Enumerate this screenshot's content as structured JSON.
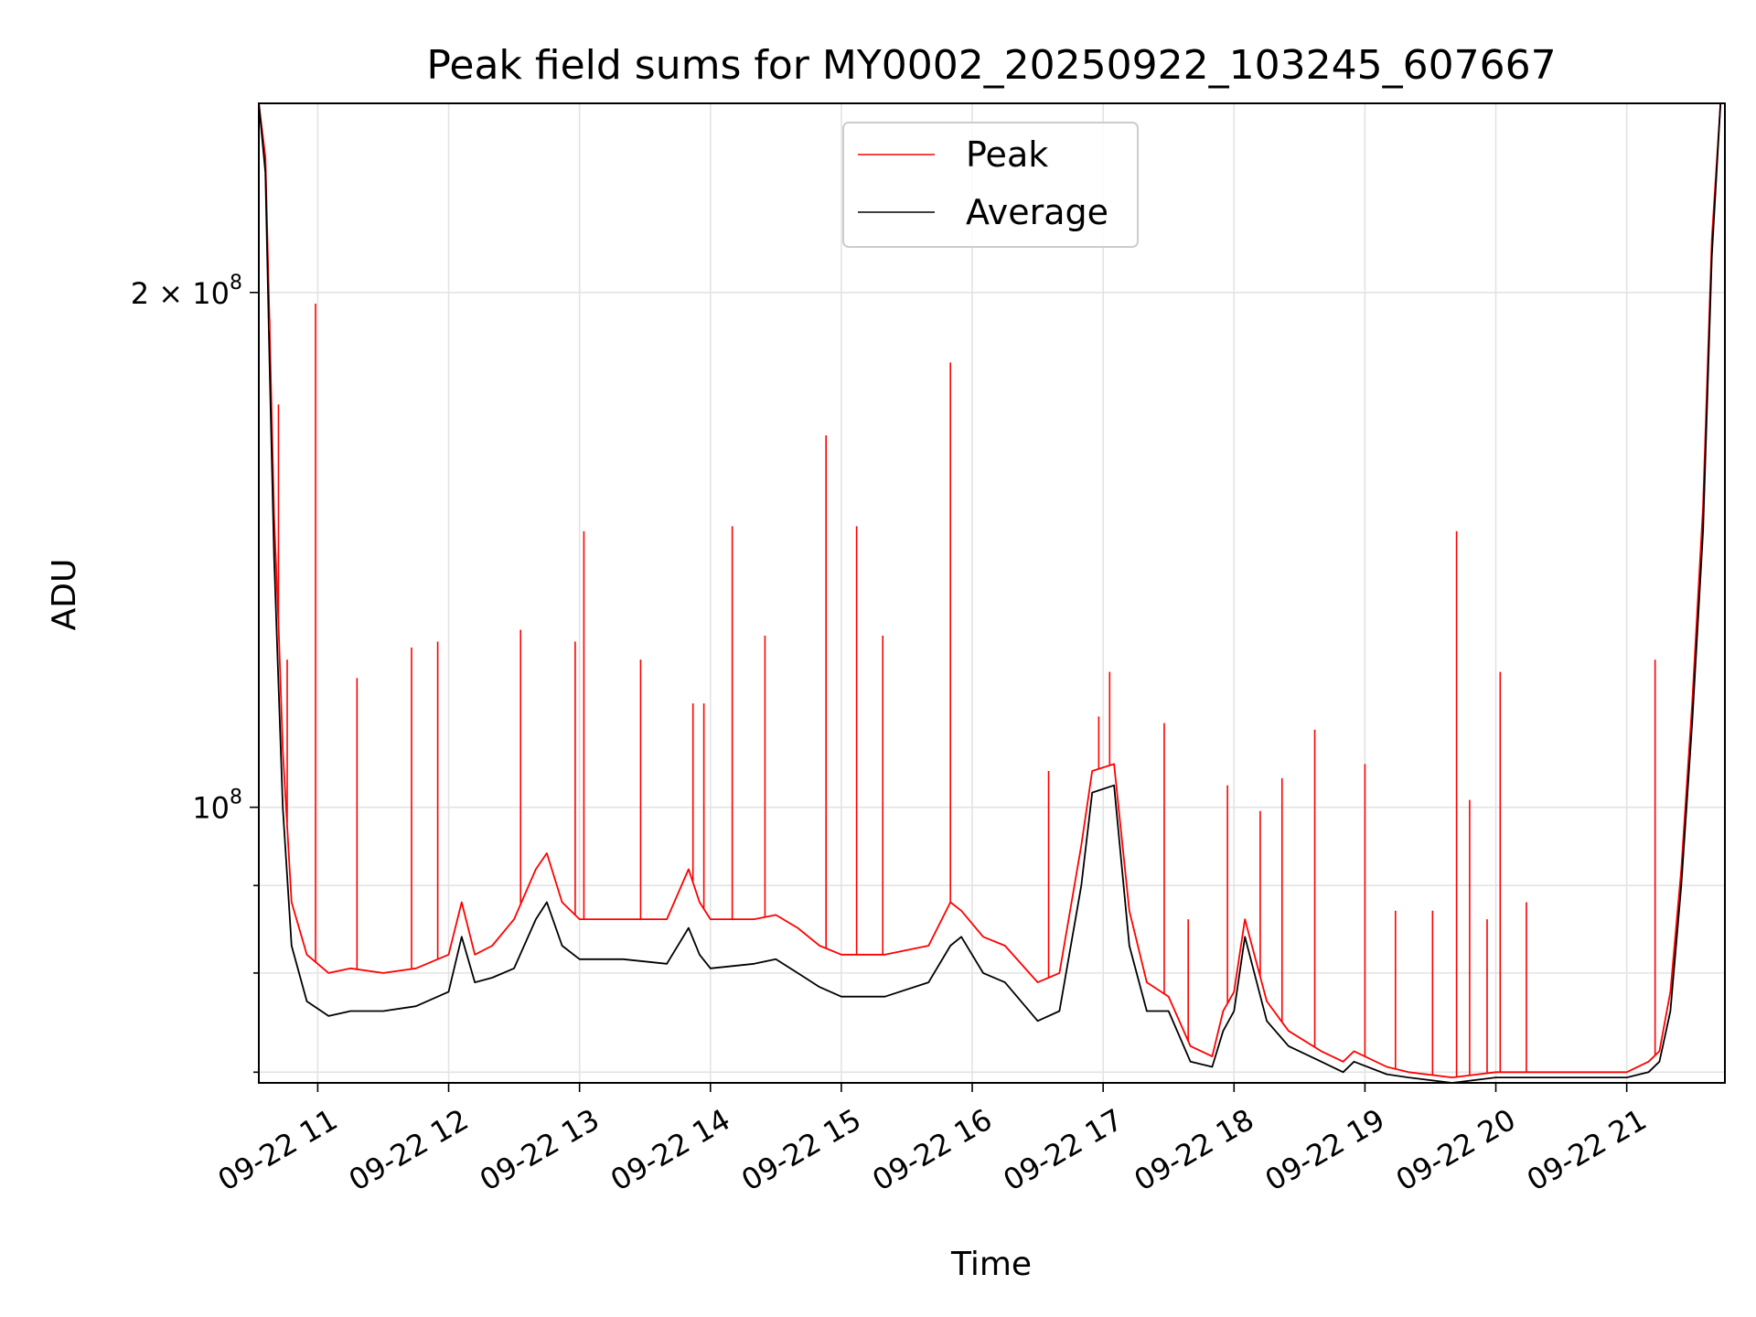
{
  "chart_data": {
    "type": "line",
    "title": "Peak field sums for MY0002_20250922_103245_607667",
    "xlabel": "Time",
    "ylabel": "ADU",
    "y_scale": "log",
    "grid": true,
    "legend_position": "upper center",
    "xlim": [
      "2025-09-22 10:33",
      "2025-09-22 21:45"
    ],
    "ylim": [
      69000000,
      258000000
    ],
    "x_ticks": [
      {
        "value": "2025-09-22 11:00",
        "label": "09-22 11"
      },
      {
        "value": "2025-09-22 12:00",
        "label": "09-22 12"
      },
      {
        "value": "2025-09-22 13:00",
        "label": "09-22 13"
      },
      {
        "value": "2025-09-22 14:00",
        "label": "09-22 14"
      },
      {
        "value": "2025-09-22 15:00",
        "label": "09-22 15"
      },
      {
        "value": "2025-09-22 16:00",
        "label": "09-22 16"
      },
      {
        "value": "2025-09-22 17:00",
        "label": "09-22 17"
      },
      {
        "value": "2025-09-22 18:00",
        "label": "09-22 18"
      },
      {
        "value": "2025-09-22 19:00",
        "label": "09-22 19"
      },
      {
        "value": "2025-09-22 20:00",
        "label": "09-22 20"
      },
      {
        "value": "2025-09-22 21:00",
        "label": "09-22 21"
      }
    ],
    "y_major_ticks": [
      {
        "value": 100000000,
        "label_base": "10",
        "label_exp": "8",
        "label_prefix": ""
      },
      {
        "value": 200000000,
        "label_base": "10",
        "label_exp": "8",
        "label_prefix": "2 × "
      }
    ],
    "y_minor_ticks": [
      70000000,
      80000000,
      90000000
    ],
    "series": [
      {
        "name": "Peak",
        "color": "#ff0000",
        "x": [
          "2025-09-22 10:33",
          "2025-09-22 10:36",
          "2025-09-22 10:38",
          "2025-09-22 10:40",
          "2025-09-22 10:42",
          "2025-09-22 10:44",
          "2025-09-22 10:48",
          "2025-09-22 10:55",
          "2025-09-22 11:05",
          "2025-09-22 11:15",
          "2025-09-22 11:30",
          "2025-09-22 11:45",
          "2025-09-22 12:00",
          "2025-09-22 12:06",
          "2025-09-22 12:12",
          "2025-09-22 12:20",
          "2025-09-22 12:30",
          "2025-09-22 12:40",
          "2025-09-22 12:45",
          "2025-09-22 12:52",
          "2025-09-22 13:00",
          "2025-09-22 13:20",
          "2025-09-22 13:40",
          "2025-09-22 13:50",
          "2025-09-22 13:55",
          "2025-09-22 14:00",
          "2025-09-22 14:20",
          "2025-09-22 14:30",
          "2025-09-22 14:40",
          "2025-09-22 14:50",
          "2025-09-22 15:00",
          "2025-09-22 15:20",
          "2025-09-22 15:40",
          "2025-09-22 15:50",
          "2025-09-22 15:55",
          "2025-09-22 16:05",
          "2025-09-22 16:15",
          "2025-09-22 16:30",
          "2025-09-22 16:40",
          "2025-09-22 16:50",
          "2025-09-22 16:55",
          "2025-09-22 17:05",
          "2025-09-22 17:12",
          "2025-09-22 17:20",
          "2025-09-22 17:30",
          "2025-09-22 17:40",
          "2025-09-22 17:50",
          "2025-09-22 17:55",
          "2025-09-22 18:00",
          "2025-09-22 18:05",
          "2025-09-22 18:15",
          "2025-09-22 18:25",
          "2025-09-22 18:40",
          "2025-09-22 18:50",
          "2025-09-22 18:55",
          "2025-09-22 19:10",
          "2025-09-22 19:20",
          "2025-09-22 19:40",
          "2025-09-22 20:00",
          "2025-09-22 20:30",
          "2025-09-22 21:00",
          "2025-09-22 21:10",
          "2025-09-22 21:15",
          "2025-09-22 21:20",
          "2025-09-22 21:25",
          "2025-09-22 21:30",
          "2025-09-22 21:35",
          "2025-09-22 21:39",
          "2025-09-22 21:43"
        ],
        "y": [
          258000000,
          240000000,
          190000000,
          148000000,
          128000000,
          108000000,
          88000000,
          82000000,
          80000000,
          80500000,
          80000000,
          80500000,
          82000000,
          88000000,
          82000000,
          83000000,
          86000000,
          92000000,
          94000000,
          88000000,
          86000000,
          86000000,
          86000000,
          92000000,
          88000000,
          86000000,
          86000000,
          86500000,
          85000000,
          83000000,
          82000000,
          82000000,
          83000000,
          88000000,
          87000000,
          84000000,
          83000000,
          79000000,
          80000000,
          95000000,
          105000000,
          106000000,
          87000000,
          79000000,
          77500000,
          72500000,
          71500000,
          76000000,
          78000000,
          86000000,
          77000000,
          74000000,
          72000000,
          71000000,
          72000000,
          70500000,
          70000000,
          69500000,
          70000000,
          70000000,
          70000000,
          71000000,
          72000000,
          78000000,
          92000000,
          115000000,
          150000000,
          215000000,
          258000000
        ]
      },
      {
        "name": "Average",
        "color": "#000000",
        "x": [
          "2025-09-22 10:33",
          "2025-09-22 10:36",
          "2025-09-22 10:38",
          "2025-09-22 10:40",
          "2025-09-22 10:42",
          "2025-09-22 10:44",
          "2025-09-22 10:48",
          "2025-09-22 10:55",
          "2025-09-22 11:05",
          "2025-09-22 11:15",
          "2025-09-22 11:30",
          "2025-09-22 11:45",
          "2025-09-22 12:00",
          "2025-09-22 12:06",
          "2025-09-22 12:12",
          "2025-09-22 12:20",
          "2025-09-22 12:30",
          "2025-09-22 12:40",
          "2025-09-22 12:45",
          "2025-09-22 12:52",
          "2025-09-22 13:00",
          "2025-09-22 13:20",
          "2025-09-22 13:40",
          "2025-09-22 13:50",
          "2025-09-22 13:55",
          "2025-09-22 14:00",
          "2025-09-22 14:20",
          "2025-09-22 14:30",
          "2025-09-22 14:40",
          "2025-09-22 14:50",
          "2025-09-22 15:00",
          "2025-09-22 15:20",
          "2025-09-22 15:40",
          "2025-09-22 15:50",
          "2025-09-22 15:55",
          "2025-09-22 16:05",
          "2025-09-22 16:15",
          "2025-09-22 16:30",
          "2025-09-22 16:40",
          "2025-09-22 16:50",
          "2025-09-22 16:55",
          "2025-09-22 17:05",
          "2025-09-22 17:12",
          "2025-09-22 17:20",
          "2025-09-22 17:30",
          "2025-09-22 17:40",
          "2025-09-22 17:50",
          "2025-09-22 17:55",
          "2025-09-22 18:00",
          "2025-09-22 18:05",
          "2025-09-22 18:15",
          "2025-09-22 18:25",
          "2025-09-22 18:40",
          "2025-09-22 18:50",
          "2025-09-22 18:55",
          "2025-09-22 19:10",
          "2025-09-22 19:20",
          "2025-09-22 19:40",
          "2025-09-22 20:00",
          "2025-09-22 20:30",
          "2025-09-22 21:00",
          "2025-09-22 21:10",
          "2025-09-22 21:15",
          "2025-09-22 21:20",
          "2025-09-22 21:25",
          "2025-09-22 21:30",
          "2025-09-22 21:35",
          "2025-09-22 21:39",
          "2025-09-22 21:43"
        ],
        "y": [
          258000000,
          235000000,
          180000000,
          140000000,
          118000000,
          100000000,
          83000000,
          77000000,
          75500000,
          76000000,
          76000000,
          76500000,
          78000000,
          84000000,
          79000000,
          79500000,
          80500000,
          86000000,
          88000000,
          83000000,
          81500000,
          81500000,
          81000000,
          85000000,
          82000000,
          80500000,
          81000000,
          81500000,
          80000000,
          78500000,
          77500000,
          77500000,
          79000000,
          83000000,
          84000000,
          80000000,
          79000000,
          75000000,
          76000000,
          90000000,
          102000000,
          103000000,
          83000000,
          76000000,
          76000000,
          71000000,
          70500000,
          74000000,
          76000000,
          84000000,
          75000000,
          72500000,
          71000000,
          70000000,
          71000000,
          69800000,
          69500000,
          69000000,
          69500000,
          69500000,
          69500000,
          70000000,
          71000000,
          76000000,
          90000000,
          112000000,
          145000000,
          210000000,
          258000000
        ]
      }
    ],
    "spikes": {
      "series": "Peak",
      "color": "#ff0000",
      "x": [
        "2025-09-22 10:38",
        "2025-09-22 10:42",
        "2025-09-22 10:46",
        "2025-09-22 10:59",
        "2025-09-22 11:18",
        "2025-09-22 11:43",
        "2025-09-22 11:55",
        "2025-09-22 12:33",
        "2025-09-22 12:58",
        "2025-09-22 13:02",
        "2025-09-22 13:28",
        "2025-09-22 13:52",
        "2025-09-22 13:57",
        "2025-09-22 14:10",
        "2025-09-22 14:25",
        "2025-09-22 14:53",
        "2025-09-22 15:07",
        "2025-09-22 15:19",
        "2025-09-22 15:50",
        "2025-09-22 16:35",
        "2025-09-22 16:58",
        "2025-09-22 17:03",
        "2025-09-22 17:28",
        "2025-09-22 17:39",
        "2025-09-22 17:57",
        "2025-09-22 18:12",
        "2025-09-22 18:22",
        "2025-09-22 18:37",
        "2025-09-22 19:00",
        "2025-09-22 19:14",
        "2025-09-22 19:31",
        "2025-09-22 19:42",
        "2025-09-22 19:48",
        "2025-09-22 19:56",
        "2025-09-22 20:02",
        "2025-09-22 20:14",
        "2025-09-22 21:13"
      ],
      "y": [
        193000000,
        172000000,
        122000000,
        197000000,
        119000000,
        124000000,
        125000000,
        127000000,
        125000000,
        145000000,
        122000000,
        115000000,
        115000000,
        146000000,
        126000000,
        165000000,
        146000000,
        126000000,
        182000000,
        105000000,
        113000000,
        120000000,
        112000000,
        86000000,
        103000000,
        99500000,
        104000000,
        111000000,
        106000000,
        87000000,
        87000000,
        145000000,
        101000000,
        86000000,
        120000000,
        88000000,
        122000000
      ]
    },
    "legend": [
      {
        "label": "Peak",
        "color": "#ff0000"
      },
      {
        "label": "Average",
        "color": "#000000"
      }
    ]
  }
}
